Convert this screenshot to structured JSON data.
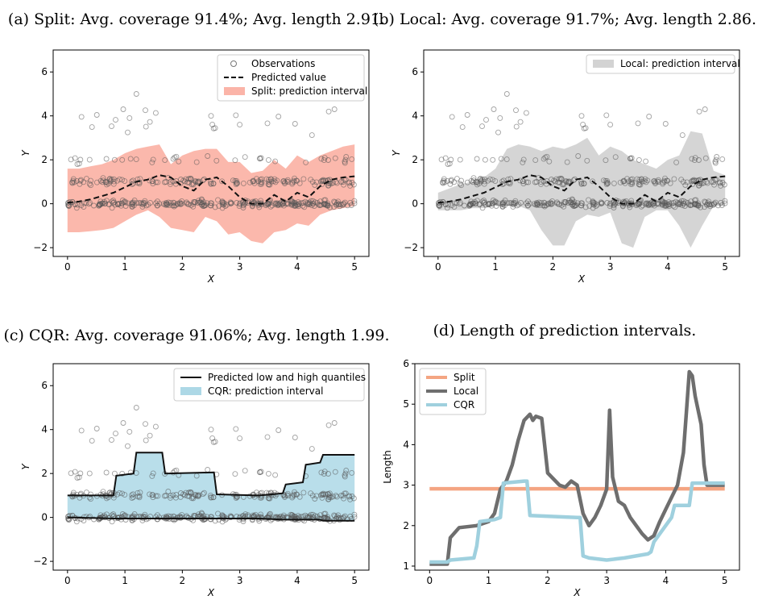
{
  "chart_data": [
    {
      "id": "a",
      "type": "scatter",
      "title": "(a) Split: Avg. coverage 91.4%; Avg. length 2.91.",
      "xlabel": "X",
      "ylabel": "Y",
      "xlim": [
        -0.25,
        5.25
      ],
      "ylim": [
        -2.4,
        7.0
      ],
      "xticks": [
        0,
        1,
        2,
        3,
        4,
        5
      ],
      "yticks": [
        -2,
        0,
        2,
        4,
        6
      ],
      "legend": [
        "Observations",
        "Predicted value",
        "Split: prediction interval"
      ],
      "band_color": "#fbb4a8",
      "series": {
        "x": [
          0,
          0.2,
          0.4,
          0.6,
          0.8,
          1.0,
          1.2,
          1.4,
          1.6,
          1.8,
          2.0,
          2.2,
          2.4,
          2.6,
          2.8,
          3.0,
          3.2,
          3.4,
          3.6,
          3.8,
          4.0,
          4.2,
          4.4,
          4.6,
          4.8,
          5.0
        ],
        "predicted": [
          0.05,
          0.1,
          0.2,
          0.35,
          0.5,
          0.75,
          1.0,
          1.1,
          1.3,
          1.2,
          0.8,
          0.6,
          1.1,
          1.2,
          0.8,
          0.3,
          0.0,
          0.0,
          0.4,
          0.1,
          0.5,
          0.3,
          0.8,
          1.1,
          1.2,
          1.25
        ],
        "lower": [
          -1.3,
          -1.3,
          -1.25,
          -1.2,
          -1.1,
          -0.8,
          -0.5,
          -0.3,
          -0.6,
          -1.1,
          -1.2,
          -1.3,
          -0.6,
          -0.8,
          -1.4,
          -1.3,
          -1.7,
          -1.8,
          -1.3,
          -1.2,
          -0.9,
          -1.0,
          -0.5,
          -0.3,
          -0.2,
          -0.1
        ],
        "upper": [
          1.6,
          1.6,
          1.7,
          1.8,
          2.0,
          2.3,
          2.5,
          2.6,
          2.7,
          1.8,
          2.2,
          2.4,
          2.5,
          2.5,
          1.9,
          1.9,
          1.4,
          1.5,
          2.0,
          1.6,
          2.2,
          1.9,
          2.2,
          2.4,
          2.6,
          2.7
        ]
      }
    },
    {
      "id": "b",
      "type": "scatter",
      "title": "(b) Local: Avg. coverage 91.7%; Avg. length 2.86.",
      "xlabel": "X",
      "ylabel": "Y",
      "xlim": [
        -0.25,
        5.25
      ],
      "ylim": [
        -2.4,
        7.0
      ],
      "xticks": [
        0,
        1,
        2,
        3,
        4,
        5
      ],
      "yticks": [
        -2,
        0,
        2,
        4,
        6
      ],
      "legend": [
        "Local: prediction interval"
      ],
      "band_color": "#d3d3d3",
      "series": {
        "x": [
          0,
          0.2,
          0.4,
          0.6,
          0.8,
          1.0,
          1.2,
          1.4,
          1.6,
          1.8,
          2.0,
          2.2,
          2.4,
          2.6,
          2.8,
          3.0,
          3.2,
          3.4,
          3.6,
          3.8,
          4.0,
          4.2,
          4.4,
          4.6,
          4.8,
          5.0
        ],
        "predicted": [
          0.05,
          0.1,
          0.2,
          0.35,
          0.5,
          0.75,
          1.0,
          1.1,
          1.3,
          1.2,
          0.8,
          0.6,
          1.1,
          1.2,
          0.8,
          0.3,
          0.0,
          0.0,
          0.4,
          0.1,
          0.5,
          0.3,
          0.8,
          1.1,
          1.2,
          1.25
        ],
        "lower": [
          -0.3,
          -0.3,
          -0.3,
          -0.2,
          -0.2,
          -0.1,
          -0.1,
          -0.1,
          -0.3,
          -1.2,
          -1.9,
          -1.9,
          -0.8,
          -0.5,
          -0.6,
          -0.4,
          -1.8,
          -2.0,
          -0.6,
          -0.3,
          -0.3,
          -1.0,
          -2.0,
          -1.0,
          -0.1,
          -0.1
        ],
        "upper": [
          0.5,
          0.7,
          0.9,
          1.0,
          1.2,
          1.6,
          2.5,
          2.7,
          2.6,
          2.4,
          2.6,
          2.5,
          2.7,
          3.0,
          2.2,
          2.6,
          2.4,
          2.0,
          1.8,
          1.6,
          2.0,
          2.2,
          3.3,
          3.2,
          1.5,
          1.3
        ]
      }
    },
    {
      "id": "c",
      "type": "scatter",
      "title": "(c) CQR: Avg. coverage 91.06%; Avg. length 1.99.",
      "xlabel": "X",
      "ylabel": "Y",
      "xlim": [
        -0.25,
        5.25
      ],
      "ylim": [
        -2.4,
        7.0
      ],
      "xticks": [
        0,
        1,
        2,
        3,
        4,
        5
      ],
      "yticks": [
        -2,
        0,
        2,
        4,
        6
      ],
      "legend": [
        "Predicted low and high quantiles",
        "CQR: prediction interval"
      ],
      "band_color": "#add8e6",
      "series": {
        "x": [
          0,
          0.8,
          0.85,
          1.15,
          1.2,
          1.65,
          1.7,
          2.55,
          2.6,
          3.3,
          3.35,
          3.75,
          3.8,
          4.1,
          4.15,
          4.4,
          4.45,
          5.0
        ],
        "lower": [
          0.0,
          -0.05,
          -0.05,
          -0.05,
          -0.05,
          -0.05,
          -0.05,
          -0.05,
          -0.05,
          -0.05,
          -0.05,
          -0.1,
          -0.1,
          -0.1,
          -0.1,
          -0.1,
          -0.15,
          -0.15
        ],
        "upper": [
          1.0,
          1.0,
          1.9,
          2.0,
          2.95,
          2.95,
          2.0,
          2.05,
          1.05,
          1.0,
          1.0,
          1.1,
          1.5,
          1.6,
          2.4,
          2.5,
          2.85,
          2.85
        ]
      }
    },
    {
      "id": "d",
      "type": "line",
      "title": "(d) Length of prediction intervals.",
      "xlabel": "X",
      "ylabel": "Length",
      "xlim": [
        -0.25,
        5.25
      ],
      "ylim": [
        0.9,
        6.0
      ],
      "xticks": [
        0,
        1,
        2,
        3,
        4,
        5
      ],
      "yticks": [
        1,
        2,
        3,
        4,
        5,
        6
      ],
      "legend": [
        "Split",
        "Local",
        "CQR"
      ],
      "series": [
        {
          "name": "Split",
          "color": "#f4a582",
          "x": [
            0,
            5.0
          ],
          "y": [
            2.91,
            2.91
          ]
        },
        {
          "name": "Local",
          "color": "#6e6e6e",
          "x": [
            0,
            0.3,
            0.35,
            0.5,
            0.8,
            0.9,
            1.0,
            1.1,
            1.2,
            1.3,
            1.4,
            1.5,
            1.6,
            1.7,
            1.75,
            1.8,
            1.9,
            2.0,
            2.2,
            2.3,
            2.4,
            2.5,
            2.6,
            2.7,
            2.8,
            2.9,
            3.0,
            3.05,
            3.1,
            3.2,
            3.3,
            3.4,
            3.5,
            3.6,
            3.7,
            3.8,
            3.9,
            4.0,
            4.2,
            4.3,
            4.35,
            4.4,
            4.45,
            4.5,
            4.6,
            4.65,
            4.7,
            5.0
          ],
          "y": [
            1.05,
            1.05,
            1.7,
            1.95,
            2.0,
            2.05,
            2.1,
            2.3,
            2.9,
            3.1,
            3.5,
            4.1,
            4.6,
            4.75,
            4.6,
            4.7,
            4.65,
            3.3,
            3.0,
            2.95,
            3.1,
            3.0,
            2.3,
            2.0,
            2.2,
            2.5,
            2.9,
            4.85,
            3.2,
            2.6,
            2.5,
            2.2,
            2.0,
            1.8,
            1.65,
            1.75,
            2.1,
            2.4,
            3.0,
            3.8,
            4.8,
            5.8,
            5.7,
            5.2,
            4.5,
            3.5,
            3.0,
            3.0
          ]
        },
        {
          "name": "CQR",
          "color": "#9fd0de",
          "x": [
            0,
            0.3,
            0.35,
            0.75,
            0.8,
            0.85,
            1.1,
            1.2,
            1.25,
            1.6,
            1.65,
            1.7,
            2.5,
            2.55,
            2.6,
            2.7,
            3.0,
            3.3,
            3.7,
            3.75,
            3.8,
            4.1,
            4.15,
            4.4,
            4.45,
            5.0
          ],
          "y": [
            1.1,
            1.1,
            1.15,
            1.2,
            1.5,
            2.1,
            2.15,
            2.2,
            3.05,
            3.1,
            3.1,
            2.25,
            2.2,
            2.2,
            1.25,
            1.2,
            1.15,
            1.2,
            1.3,
            1.35,
            1.6,
            2.2,
            2.5,
            2.5,
            3.05,
            3.05
          ]
        }
      ]
    }
  ]
}
